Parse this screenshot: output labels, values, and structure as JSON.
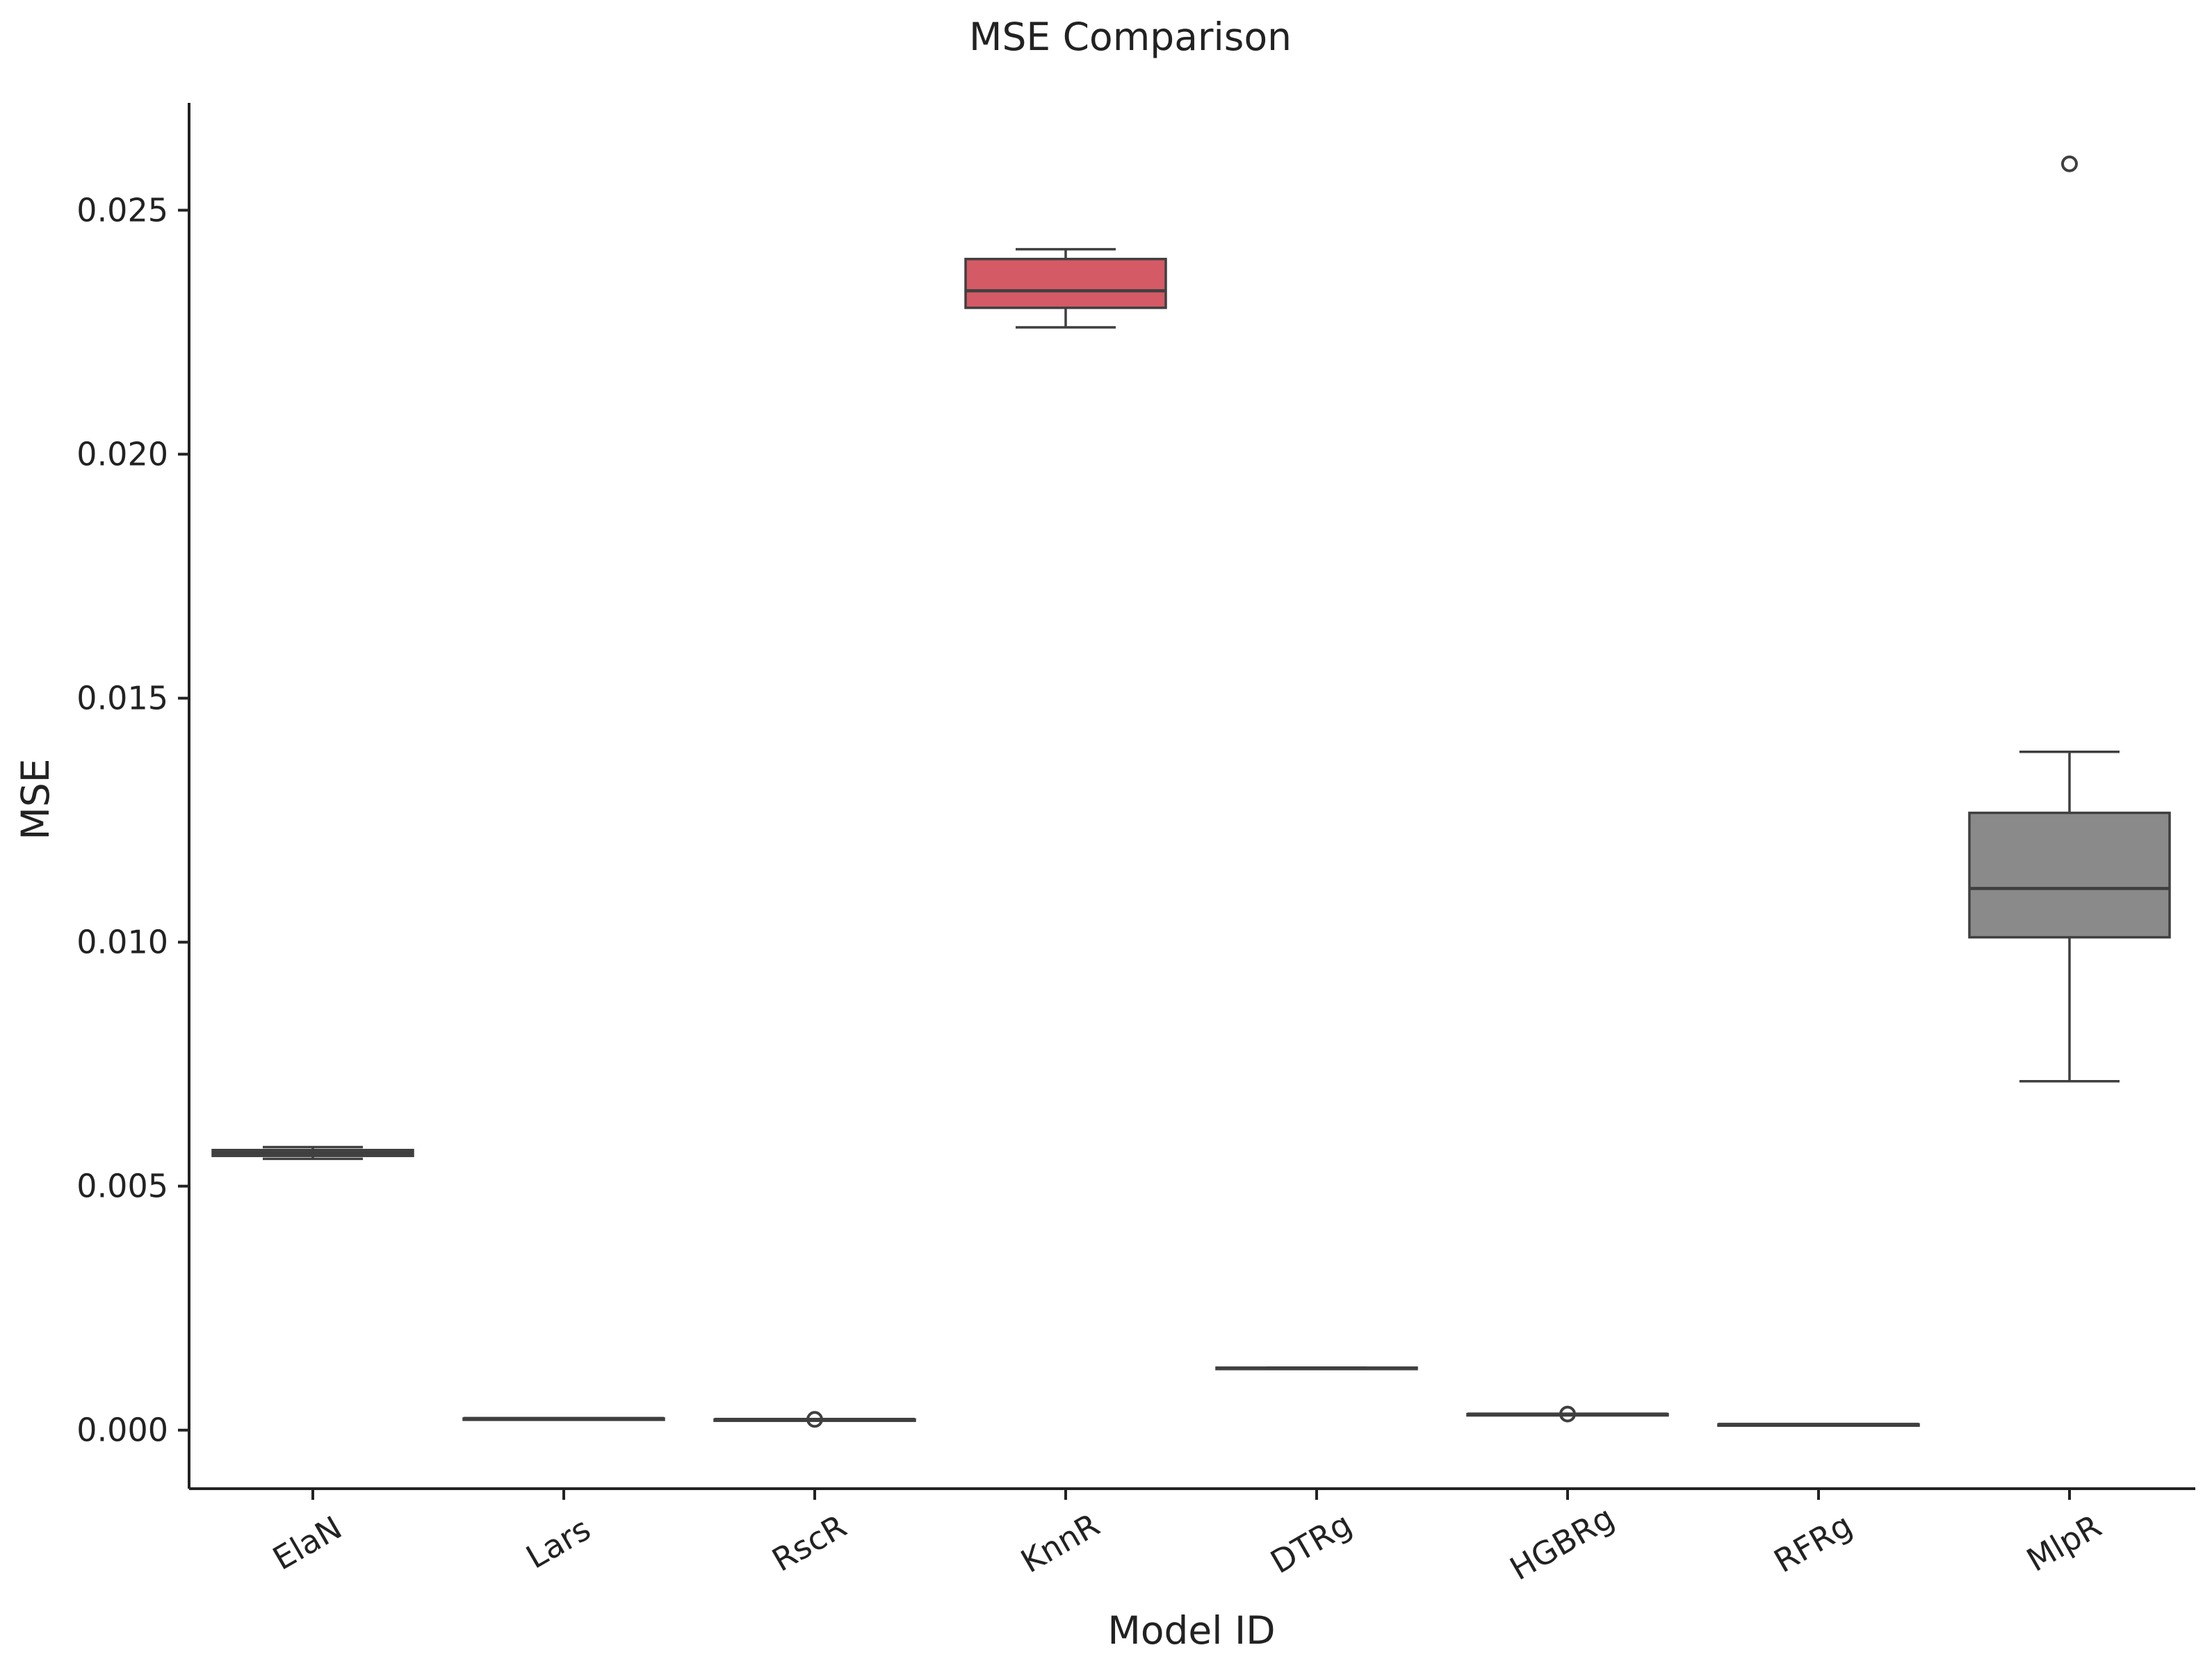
{
  "chart_data": {
    "type": "box",
    "title": "MSE Comparison",
    "xlabel": "Model ID",
    "ylabel": "MSE",
    "ylim": [
      -0.0012,
      0.0272
    ],
    "yticks": [
      "0.000",
      "0.005",
      "0.010",
      "0.015",
      "0.020",
      "0.025"
    ],
    "ytick_values": [
      0.0,
      0.005,
      0.01,
      0.015,
      0.02,
      0.025
    ],
    "grid": false,
    "categories": [
      "ElaN",
      "Lars",
      "RscR",
      "KnnR",
      "DTRg",
      "HGBRg",
      "RFRg",
      "MlpR"
    ],
    "boxes": [
      {
        "label": "ElaN",
        "whislo": 0.00556,
        "q1": 0.00562,
        "med": 0.00568,
        "q3": 0.00574,
        "whishi": 0.0058,
        "fliers": [],
        "color": "#555555"
      },
      {
        "label": "Lars",
        "whislo": 0.00024,
        "q1": 0.00024,
        "med": 0.00024,
        "q3": 0.00024,
        "whishi": 0.00024,
        "fliers": [],
        "color": "#555555"
      },
      {
        "label": "RscR",
        "whislo": 0.00022,
        "q1": 0.00022,
        "med": 0.00022,
        "q3": 0.00022,
        "whishi": 0.00022,
        "fliers": [
          0.00022
        ],
        "color": "#555555"
      },
      {
        "label": "KnnR",
        "whislo": 0.0226,
        "q1": 0.023,
        "med": 0.02335,
        "q3": 0.024,
        "whishi": 0.0242,
        "fliers": [],
        "color": "#d45a66"
      },
      {
        "label": "DTRg",
        "whislo": 0.00127,
        "q1": 0.00127,
        "med": 0.00127,
        "q3": 0.00128,
        "whishi": 0.00128,
        "fliers": [],
        "color": "#555555"
      },
      {
        "label": "HGBRg",
        "whislo": 0.00033,
        "q1": 0.00033,
        "med": 0.00033,
        "q3": 0.00033,
        "whishi": 0.00033,
        "fliers": [
          0.00033
        ],
        "color": "#555555"
      },
      {
        "label": "RFRg",
        "whislo": 0.00012,
        "q1": 0.00012,
        "med": 0.00012,
        "q3": 0.00012,
        "whishi": 0.00012,
        "fliers": [],
        "color": "#555555"
      },
      {
        "label": "MlpR",
        "whislo": 0.00715,
        "q1": 0.0101,
        "med": 0.0111,
        "q3": 0.01265,
        "whishi": 0.0139,
        "fliers": [
          0.02595
        ],
        "color": "#8a8a8a"
      }
    ]
  }
}
